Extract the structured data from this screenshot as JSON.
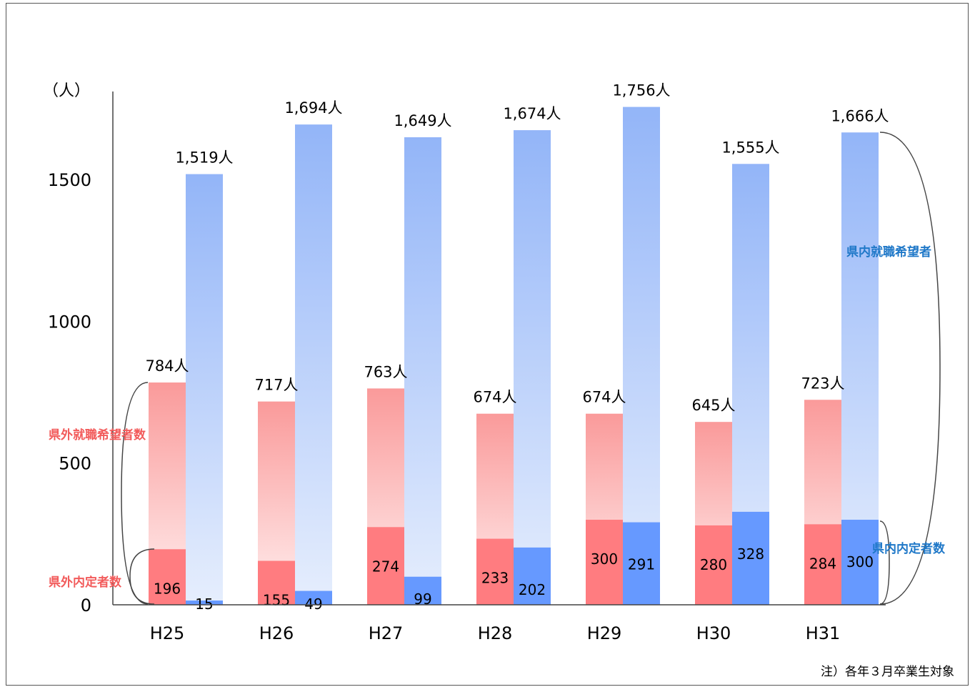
{
  "chart_data": {
    "type": "bar",
    "title": "",
    "unit_label": "（人）",
    "categories": [
      "H25",
      "H26",
      "H27",
      "H28",
      "H29",
      "H30",
      "H31"
    ],
    "ylim": [
      0,
      1800
    ],
    "yticks": [
      "0",
      "500",
      "1000",
      "1500"
    ],
    "ytick_values": [
      0,
      500,
      1000,
      1500
    ],
    "series": [
      {
        "name": "県外就職希望者数",
        "values": [
          784,
          717,
          763,
          674,
          674,
          645,
          723
        ],
        "labels": [
          "784人",
          "717人",
          "763人",
          "674人",
          "674人",
          "645人",
          "723人"
        ],
        "color": "#f37b7b"
      },
      {
        "name": "県外内定者数",
        "values": [
          196,
          155,
          274,
          233,
          300,
          280,
          284
        ],
        "labels": [
          "196",
          "155",
          "274",
          "233",
          "300",
          "280",
          "284"
        ],
        "color": "#ff7c80"
      },
      {
        "name": "県内就職希望者",
        "values": [
          1519,
          1694,
          1649,
          1674,
          1756,
          1555,
          1666
        ],
        "labels": [
          "1,519人",
          "1,694人",
          "1,649人",
          "1,674人",
          "1,756人",
          "1,555人",
          "1,666人"
        ],
        "color": "#8fb1f7"
      },
      {
        "name": "県内内定者数",
        "values": [
          15,
          49,
          99,
          202,
          291,
          328,
          300
        ],
        "labels": [
          "15",
          "49",
          "99",
          "202",
          "291",
          "328",
          "300"
        ],
        "color": "#6699ff"
      }
    ],
    "note": "注）各年３月卒業生対象"
  }
}
